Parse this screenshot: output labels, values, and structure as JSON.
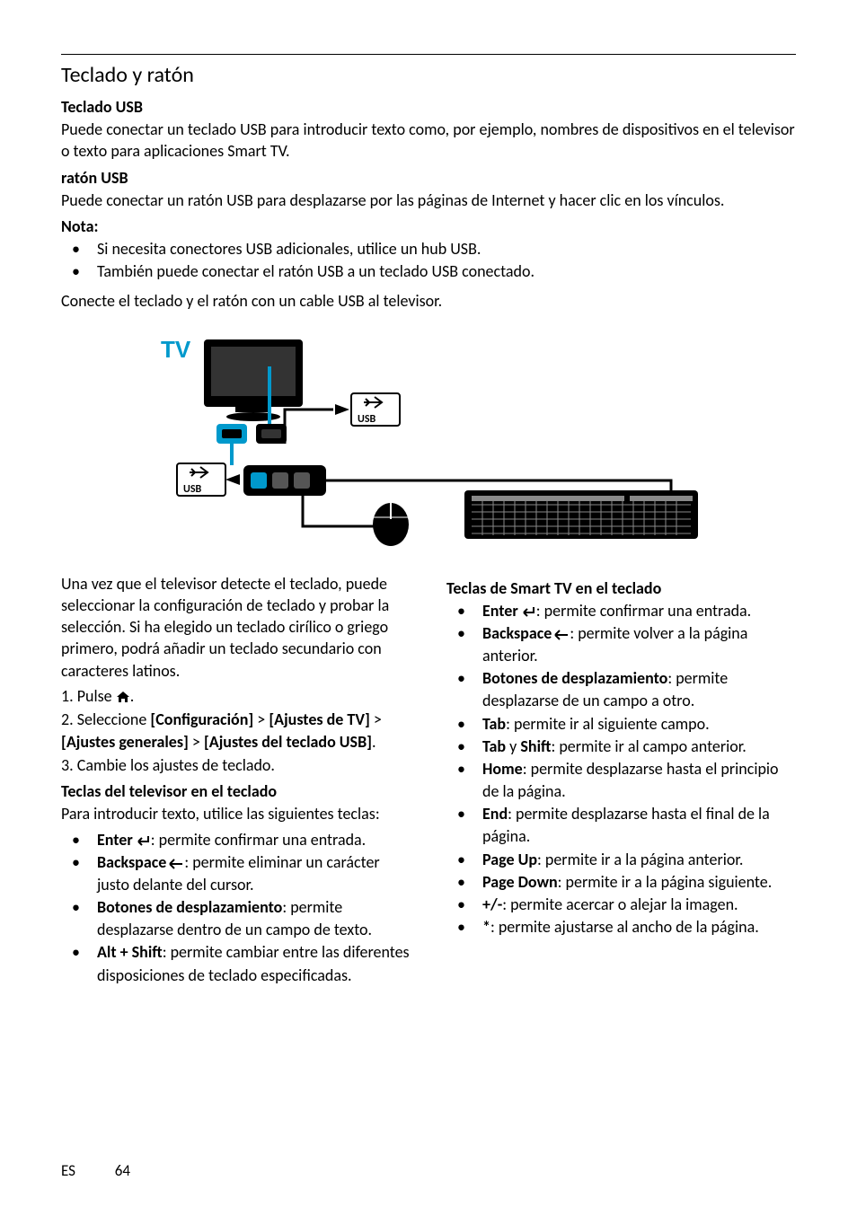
{
  "section_title": "Teclado y ratón",
  "sub1_title": "Teclado USB",
  "sub1_text": "Puede conectar un teclado USB para introducir texto como, por ejemplo, nombres de dispositivos en el televisor o texto para aplicaciones Smart TV.",
  "sub2_title": "ratón USB",
  "sub2_text": "Puede conectar un ratón USB para desplazarse por las páginas de Internet y hacer clic en los vínculos.",
  "nota_title": "Nota:",
  "nota_items": [
    "Si necesita conectores USB adicionales, utilice un hub USB.",
    "También puede conectar el ratón USB a un teclado USB conectado."
  ],
  "connect_text": "Conecte el teclado y el ratón con un cable USB al televisor.",
  "diagram": {
    "tv_label": "TV",
    "usb_label": "USB",
    "color_blue": "#0099cc",
    "color_black": "#000000",
    "color_white": "#ffffff",
    "color_gray": "#bbbbbb"
  },
  "left": {
    "intro": "Una vez que el televisor detecte el teclado, puede seleccionar la configuración de teclado y probar la selección. Si ha elegido un teclado cirílico o griego primero, podrá añadir un teclado secundario con caracteres latinos.",
    "step1_pre": "1. Pulse ",
    "step1_post": ".",
    "step2_pre": "2. Seleccione ",
    "step2_b1": "[Configuración]",
    "step2_gt1": " > ",
    "step2_b2": "[Ajustes de TV]",
    "step2_gt2": " > ",
    "step2_b3": "[Ajustes generales]",
    "step2_gt3": " > ",
    "step2_b4": "[Ajustes del teclado USB]",
    "step2_post": ".",
    "step3": "3. Cambie los ajustes de teclado.",
    "tv_keys_title": "Teclas del televisor en el teclado",
    "tv_keys_intro": "Para introducir texto, utilice las siguientes teclas:",
    "tv_keys": [
      {
        "b": "Enter",
        "icon": "enter",
        "t": ": permite confirmar una entrada."
      },
      {
        "b": "Backspace",
        "icon": "back",
        "t": ": permite eliminar un carácter justo delante del cursor."
      },
      {
        "b": "Botones de desplazamiento",
        "t": ": permite desplazarse dentro de un campo de texto."
      },
      {
        "b": "Alt + Shift",
        "t": ": permite cambiar entre las diferentes disposiciones de teclado especificadas."
      }
    ]
  },
  "right": {
    "st_title": "Teclas de Smart TV en el teclado",
    "st_keys": [
      {
        "b": "Enter",
        "icon": "enter",
        "t": ": permite confirmar una entrada."
      },
      {
        "b": "Backspace",
        "icon": "back",
        "t": ": permite volver a la página anterior."
      },
      {
        "b": "Botones de desplazamiento",
        "t": ": permite desplazarse de un campo a otro."
      },
      {
        "b": "Tab",
        "t": ": permite ir al siguiente campo."
      },
      {
        "b": "Tab",
        "b2": "Shift",
        "mid": " y ",
        "t": ": permite ir al campo anterior."
      },
      {
        "b": "Home",
        "t": ": permite desplazarse hasta el principio de la página."
      },
      {
        "b": "End",
        "t": ": permite desplazarse hasta el final de la página."
      },
      {
        "b": "Page Up",
        "t": ": permite ir a la página anterior."
      },
      {
        "b": "Page Down",
        "t": ": permite ir a la página siguiente."
      },
      {
        "b": "+/-",
        "t": ": permite acercar o alejar la imagen."
      },
      {
        "b": "*",
        "t": ": permite ajustarse al ancho de la página."
      }
    ]
  },
  "footer": {
    "lang": "ES",
    "page": "64"
  }
}
